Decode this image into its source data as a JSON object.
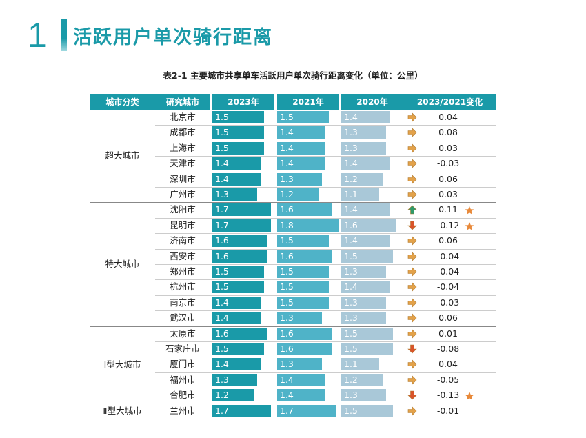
{
  "header": {
    "number": "1",
    "title": "活跃用户单次骑行距离"
  },
  "caption": "表2-1 主要城市共享单车活跃用户单次骑行距离变化（单位：公里）",
  "table": {
    "columns": [
      "城市分类",
      "研究城市",
      "2023年",
      "2021年",
      "2020年",
      "2023/2021变化"
    ],
    "groups": [
      {
        "name": "超大城市",
        "rows": [
          {
            "city": "北京市",
            "v2023": 1.5,
            "v2021": 1.5,
            "v2020": 1.4,
            "change": 0.04,
            "arrow": "flat"
          },
          {
            "city": "成都市",
            "v2023": 1.5,
            "v2021": 1.4,
            "v2020": 1.3,
            "change": 0.08,
            "arrow": "flat"
          },
          {
            "city": "上海市",
            "v2023": 1.5,
            "v2021": 1.4,
            "v2020": 1.3,
            "change": 0.03,
            "arrow": "flat"
          },
          {
            "city": "天津市",
            "v2023": 1.4,
            "v2021": 1.4,
            "v2020": 1.4,
            "change": -0.03,
            "arrow": "flat"
          },
          {
            "city": "深圳市",
            "v2023": 1.4,
            "v2021": 1.3,
            "v2020": 1.2,
            "change": 0.06,
            "arrow": "flat"
          },
          {
            "city": "广州市",
            "v2023": 1.3,
            "v2021": 1.2,
            "v2020": 1.1,
            "change": 0.03,
            "arrow": "flat"
          }
        ]
      },
      {
        "name": "特大城市",
        "rows": [
          {
            "city": "沈阳市",
            "v2023": 1.7,
            "v2021": 1.6,
            "v2020": 1.4,
            "change": 0.11,
            "arrow": "up",
            "star": true
          },
          {
            "city": "昆明市",
            "v2023": 1.7,
            "v2021": 1.8,
            "v2020": 1.6,
            "change": -0.12,
            "arrow": "down",
            "star": true
          },
          {
            "city": "济南市",
            "v2023": 1.6,
            "v2021": 1.5,
            "v2020": 1.4,
            "change": 0.06,
            "arrow": "flat"
          },
          {
            "city": "西安市",
            "v2023": 1.6,
            "v2021": 1.6,
            "v2020": 1.5,
            "change": -0.04,
            "arrow": "flat"
          },
          {
            "city": "郑州市",
            "v2023": 1.5,
            "v2021": 1.5,
            "v2020": 1.3,
            "change": -0.04,
            "arrow": "flat"
          },
          {
            "city": "杭州市",
            "v2023": 1.5,
            "v2021": 1.5,
            "v2020": 1.4,
            "change": -0.04,
            "arrow": "flat"
          },
          {
            "city": "南京市",
            "v2023": 1.4,
            "v2021": 1.5,
            "v2020": 1.3,
            "change": -0.03,
            "arrow": "flat"
          },
          {
            "city": "武汉市",
            "v2023": 1.4,
            "v2021": 1.3,
            "v2020": 1.3,
            "change": 0.06,
            "arrow": "flat"
          }
        ]
      },
      {
        "name": "Ⅰ型大城市",
        "rows": [
          {
            "city": "太原市",
            "v2023": 1.6,
            "v2021": 1.6,
            "v2020": 1.5,
            "change": 0.01,
            "arrow": "flat"
          },
          {
            "city": "石家庄市",
            "v2023": 1.5,
            "v2021": 1.6,
            "v2020": 1.5,
            "change": -0.08,
            "arrow": "down"
          },
          {
            "city": "厦门市",
            "v2023": 1.4,
            "v2021": 1.3,
            "v2020": 1.1,
            "change": 0.04,
            "arrow": "flat"
          },
          {
            "city": "福州市",
            "v2023": 1.3,
            "v2021": 1.4,
            "v2020": 1.2,
            "change": -0.05,
            "arrow": "flat"
          },
          {
            "city": "合肥市",
            "v2023": 1.2,
            "v2021": 1.4,
            "v2020": 1.3,
            "change": -0.13,
            "arrow": "down",
            "star": true
          }
        ]
      },
      {
        "name": "Ⅱ型大城市",
        "rows": [
          {
            "city": "兰州市",
            "v2023": 1.7,
            "v2021": 1.7,
            "v2020": 1.5,
            "change": -0.01,
            "arrow": "flat"
          }
        ]
      }
    ]
  }
}
